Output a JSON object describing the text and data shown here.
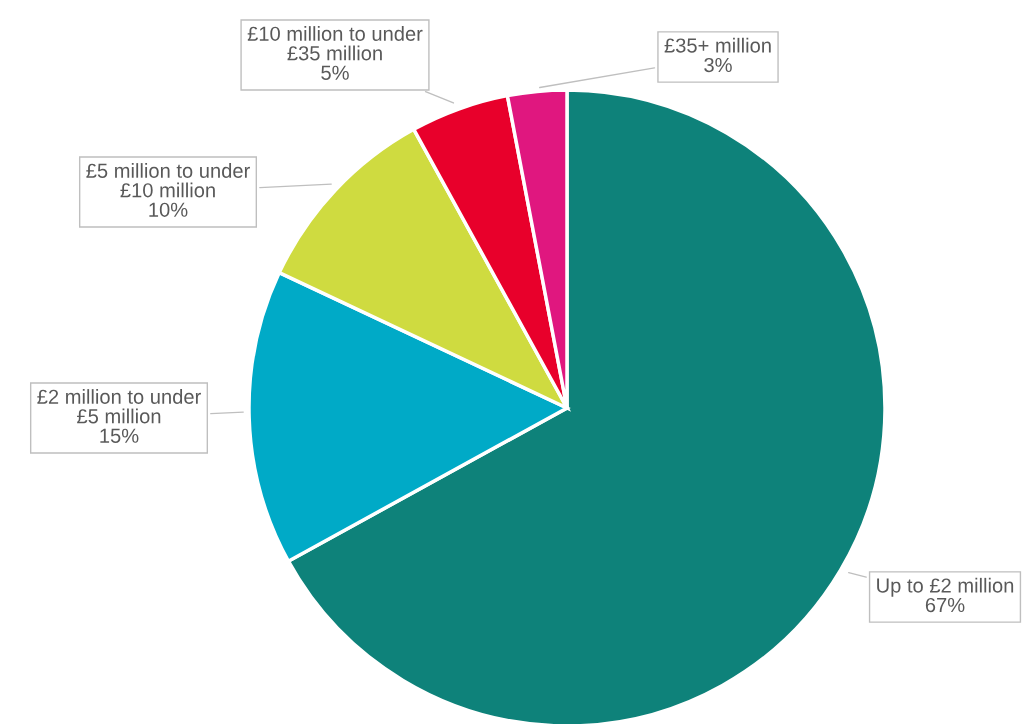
{
  "chart_data": {
    "type": "pie",
    "categories": [
      "Up to £2 million",
      "£2 million to under\n£5 million",
      "£5 million to under\n£10 million",
      "£10 million to under\n£35 million",
      "£35+ million"
    ],
    "values": [
      67,
      15,
      10,
      5,
      3
    ],
    "value_labels": [
      "67%",
      "15%",
      "10%",
      "5%",
      "3%"
    ],
    "colors": [
      "#0e827a",
      "#00aac7",
      "#cfdb40",
      "#e8002b",
      "#e0177f"
    ]
  }
}
